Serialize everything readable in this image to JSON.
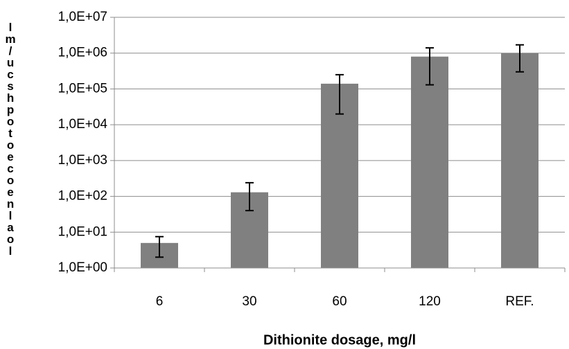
{
  "chart_data": {
    "type": "bar",
    "log_scale": true,
    "grid": true,
    "color": "#808080",
    "x_label": "Dithionite dosage, mg/l",
    "y_label": "lm/ucshpotoecoenlaol",
    "categories": [
      "6",
      "30",
      "60",
      "120",
      "REF."
    ],
    "values": [
      5,
      130,
      140000,
      800000,
      1000000
    ],
    "lower": [
      2,
      40,
      20000,
      130000,
      300000
    ],
    "upper": [
      7.5,
      240,
      250000,
      1400000,
      1700000
    ],
    "ylim": [
      1,
      10000000
    ],
    "yticks": [
      {
        "value": 1,
        "label": "1,0E+00"
      },
      {
        "value": 10,
        "label": "1,0E+01"
      },
      {
        "value": 100,
        "label": "1,0E+02"
      },
      {
        "value": 1000,
        "label": "1,0E+03"
      },
      {
        "value": 10000,
        "label": "1,0E+04"
      },
      {
        "value": 100000,
        "label": "1,0E+05"
      },
      {
        "value": 1000000,
        "label": "1,0E+06"
      },
      {
        "value": 10000000,
        "label": "1,0E+07"
      }
    ]
  }
}
